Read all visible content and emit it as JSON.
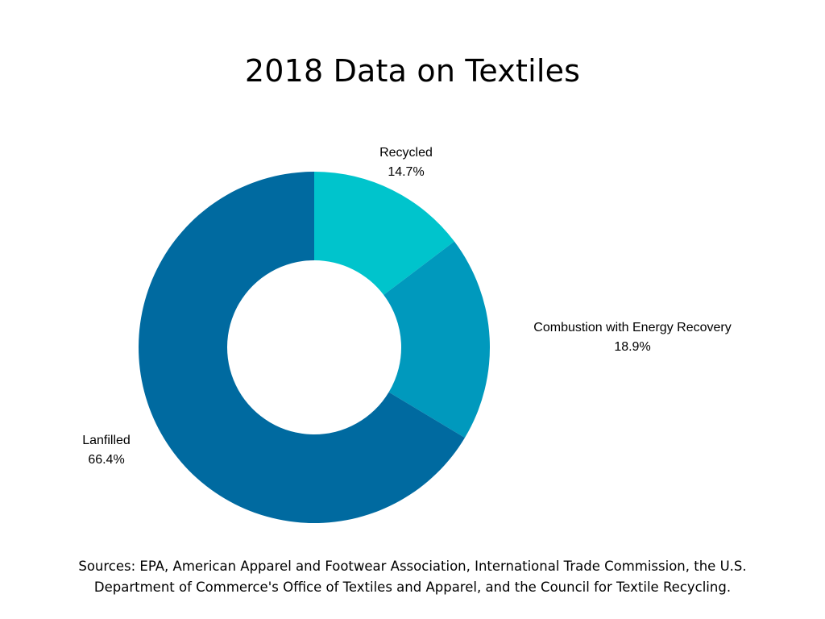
{
  "chart_data": {
    "type": "pie",
    "title": "2018 Data on Textiles",
    "donut": true,
    "legend": "none",
    "slices": [
      {
        "label": "Recycled",
        "value": 14.7,
        "display": "14.7%",
        "color": "#00C4CC"
      },
      {
        "label": "Combustion with Energy Recovery",
        "value": 18.9,
        "display": "18.9%",
        "color": "#0099BD"
      },
      {
        "label": "Lanfilled",
        "value": 66.4,
        "display": "66.4%",
        "color": "#006AA0"
      }
    ]
  },
  "sources": {
    "line1": "Sources: EPA, American Apparel and Footwear Association, International Trade Commission, the U.S.",
    "line2": "Department of Commerce's Office of Textiles and Apparel, and the Council for Textile Recycling."
  }
}
